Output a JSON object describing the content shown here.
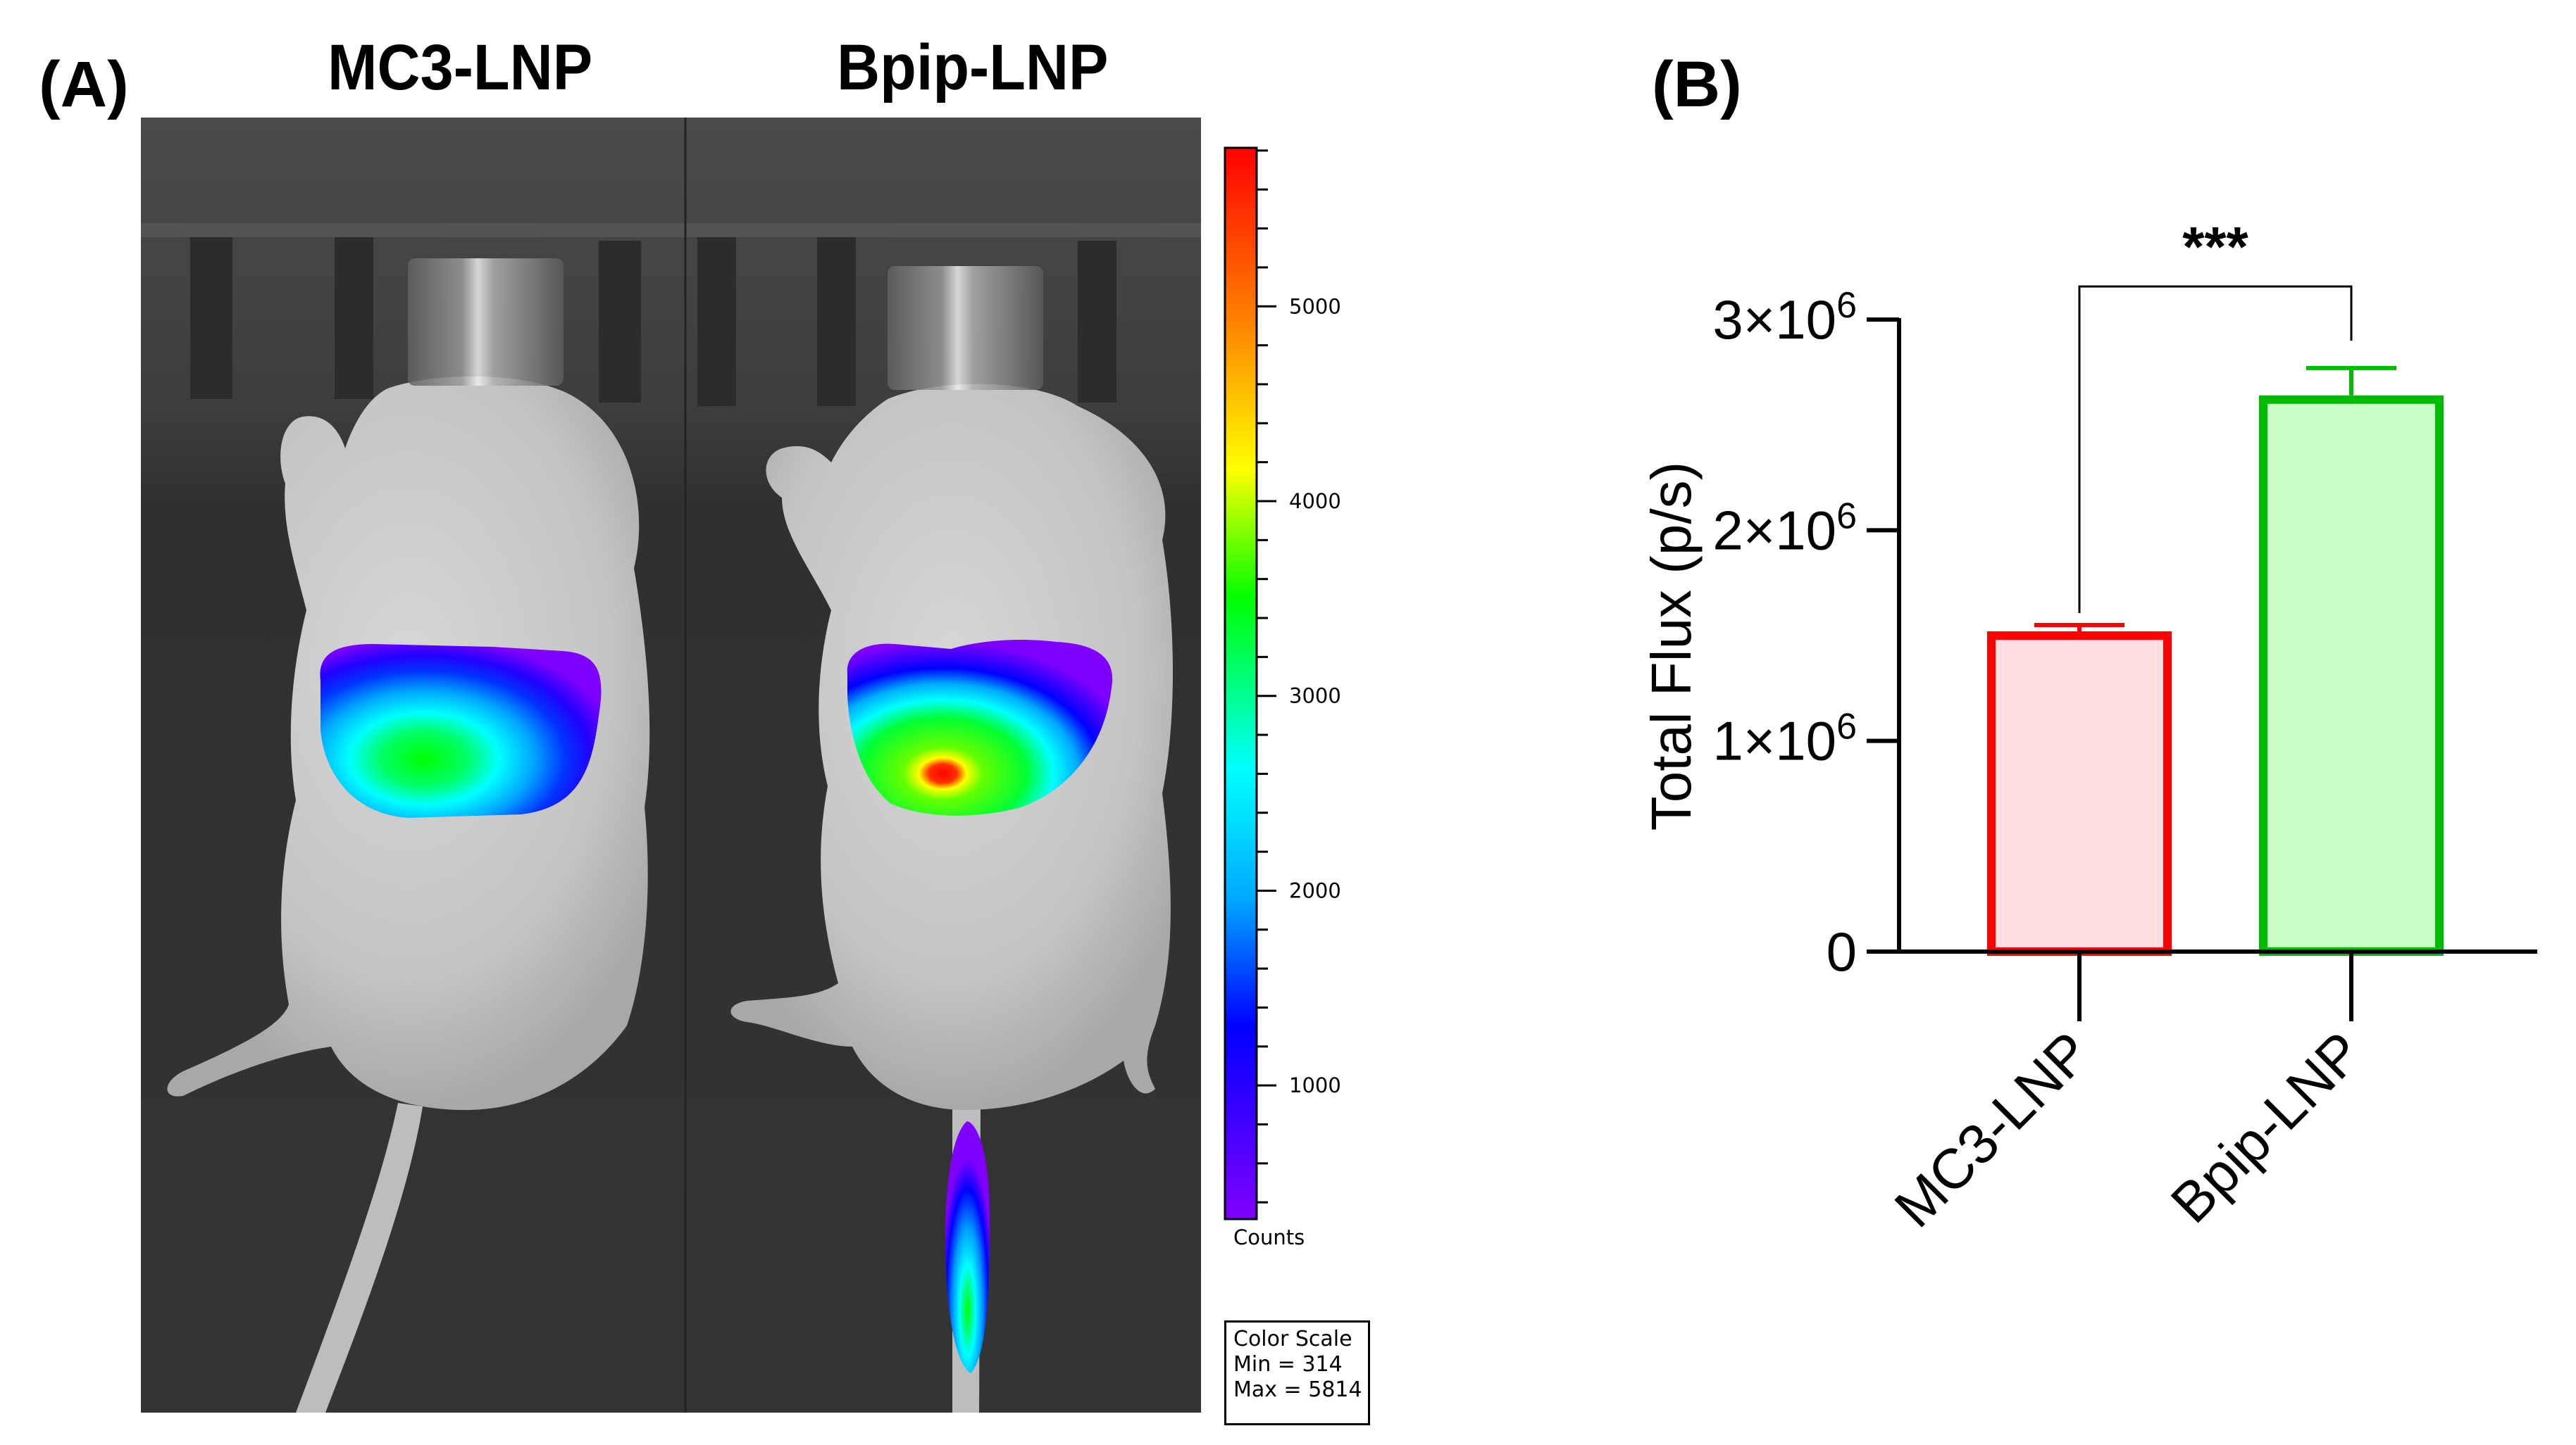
{
  "panel_a": {
    "label": "(A)",
    "groups": [
      "MC3-LNP",
      "Bpip-LNP"
    ],
    "colorbar": {
      "unit_label": "Counts",
      "ticks": [
        1000,
        2000,
        3000,
        4000,
        5000
      ],
      "min": 314,
      "max": 5814,
      "colors": [
        "#8000ff",
        "#0000ff",
        "#00aaff",
        "#00ffff",
        "#00ff00",
        "#ffff00",
        "#ff8000",
        "#ff0000"
      ]
    },
    "color_scale_box": {
      "title": "Color Scale",
      "min_text": "Min = 314",
      "max_text": "Max = 5814"
    }
  },
  "panel_b": {
    "label": "(B)"
  },
  "chart_data": {
    "type": "bar",
    "title": "",
    "xlabel": "",
    "ylabel": "Total Flux (p/s)",
    "categories": [
      "MC3-LNP",
      "Bpip-LNP"
    ],
    "values": [
      1500000,
      2620000
    ],
    "errors": [
      50000,
      150000
    ],
    "ylim": [
      0,
      3000000
    ],
    "yticks": [
      0,
      1000000,
      2000000,
      3000000
    ],
    "ytick_labels": [
      {
        "base": "0",
        "exp": ""
      },
      {
        "base": "1×10",
        "exp": "6"
      },
      {
        "base": "2×10",
        "exp": "6"
      },
      {
        "base": "3×10",
        "exp": "6"
      }
    ],
    "bar_stroke_colors": [
      "#ff0000",
      "#00bb00"
    ],
    "bar_fill_colors": [
      "#ffdfe0",
      "#c9ffc7"
    ],
    "significance": {
      "between": [
        "MC3-LNP",
        "Bpip-LNP"
      ],
      "label": "***"
    },
    "grid": false,
    "legend": "none"
  }
}
